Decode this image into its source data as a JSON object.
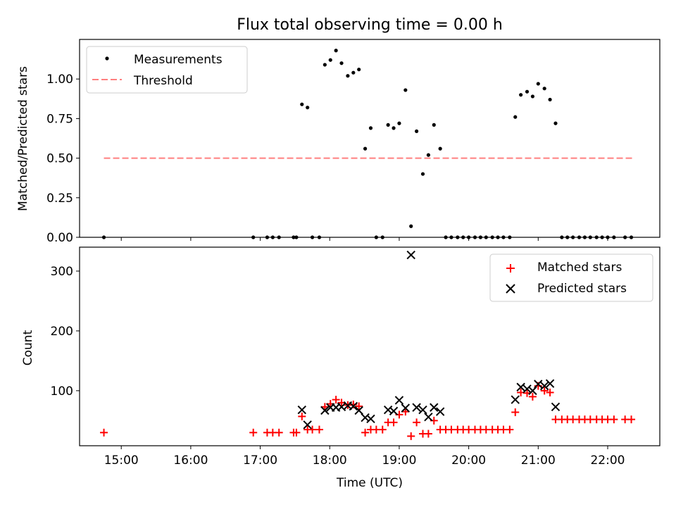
{
  "chart_data": [
    {
      "type": "scatter",
      "title": "Flux total observing time = 0.00 h",
      "xlabel": "",
      "ylabel": "Matched/Predicted stars",
      "xlim": [
        14.4,
        22.75
      ],
      "ylim": [
        0,
        1.25
      ],
      "yticks": [
        0.0,
        0.25,
        0.5,
        0.75,
        1.0
      ],
      "ytick_labels": [
        "0.00",
        "0.25",
        "0.50",
        "0.75",
        "1.00"
      ],
      "xticks": [
        15,
        16,
        17,
        18,
        19,
        20,
        21,
        22
      ],
      "legend_position": "top-left",
      "legend": [
        "Measurements",
        "Threshold"
      ],
      "threshold": {
        "name": "Threshold",
        "value": 0.5,
        "x_range": [
          14.75,
          22.35
        ],
        "color": "#ff7f7f"
      },
      "series": [
        {
          "name": "Measurements",
          "marker": "dot",
          "color": "#000000",
          "x": [
            14.75,
            16.9,
            17.1,
            17.18,
            17.27,
            17.48,
            17.52,
            17.75,
            17.85,
            17.93,
            18.01,
            18.09,
            18.17,
            18.26,
            18.34,
            18.42,
            18.51,
            18.59,
            18.67,
            18.76,
            18.84,
            18.92,
            19.0,
            19.09,
            19.17,
            19.25,
            19.34,
            19.42,
            19.5,
            19.59,
            19.67,
            19.75,
            19.84,
            19.92,
            20.0,
            20.09,
            20.17,
            20.25,
            20.34,
            20.42,
            20.5,
            20.59,
            20.67,
            20.75,
            20.84,
            20.92,
            21.0,
            21.09,
            21.17,
            21.25,
            21.34,
            21.42,
            21.5,
            21.59,
            21.67,
            21.75,
            21.84,
            21.92,
            22.0,
            22.09,
            22.25,
            22.34
          ],
          "y": [
            0.0,
            0.0,
            0.0,
            0.0,
            0.0,
            0.0,
            0.0,
            0.0,
            0.0,
            1.09,
            1.12,
            1.18,
            1.1,
            1.02,
            1.04,
            1.06,
            0.56,
            0.69,
            0.0,
            0.0,
            0.71,
            0.69,
            0.72,
            0.93,
            0.07,
            0.67,
            0.4,
            0.52,
            0.71,
            0.56,
            0.0,
            0.0,
            0.0,
            0.0,
            0.0,
            0.0,
            0.0,
            0.0,
            0.0,
            0.0,
            0.0,
            0.0,
            0.76,
            0.9,
            0.92,
            0.89,
            0.97,
            0.94,
            0.87,
            0.72,
            0.0,
            0.0,
            0.0,
            0.0,
            0.0,
            0.0,
            0.0,
            0.0,
            0.0,
            0.0,
            0.0,
            0.0
          ]
        },
        {
          "name": "Measurements",
          "marker": "dot",
          "color": "#000000",
          "x": [
            17.6,
            17.68
          ],
          "y": [
            0.84,
            0.82
          ]
        }
      ]
    },
    {
      "type": "scatter",
      "title": "",
      "xlabel": "Time (UTC)",
      "ylabel": "Count",
      "xlim": [
        14.4,
        22.75
      ],
      "ylim": [
        8,
        340
      ],
      "yticks": [
        100,
        200,
        300
      ],
      "ytick_labels": [
        "100",
        "200",
        "300"
      ],
      "xticks": [
        15,
        16,
        17,
        18,
        19,
        20,
        21,
        22
      ],
      "xtick_labels": [
        "15:00",
        "16:00",
        "17:00",
        "18:00",
        "19:00",
        "20:00",
        "21:00",
        "22:00"
      ],
      "legend_position": "top-right",
      "legend": [
        "Matched stars",
        "Predicted stars"
      ],
      "series": [
        {
          "name": "Matched stars",
          "marker": "plus",
          "color": "#ff0000",
          "x": [
            14.75,
            16.9,
            17.1,
            17.18,
            17.27,
            17.48,
            17.52,
            17.6,
            17.68,
            17.75,
            17.85,
            17.93,
            18.01,
            18.09,
            18.17,
            18.26,
            18.34,
            18.42,
            18.51,
            18.59,
            18.67,
            18.76,
            18.84,
            18.92,
            19.0,
            19.09,
            19.17,
            19.25,
            19.34,
            19.42,
            19.5,
            19.59,
            19.67,
            19.75,
            19.84,
            19.92,
            20.0,
            20.09,
            20.17,
            20.25,
            20.34,
            20.42,
            20.5,
            20.59,
            20.67,
            20.75,
            20.84,
            20.92,
            21.0,
            21.09,
            21.17,
            21.25,
            21.34,
            21.42,
            21.5,
            21.59,
            21.67,
            21.75,
            21.84,
            21.92,
            22.0,
            22.09,
            22.25,
            22.34
          ],
          "y": [
            30,
            30,
            30,
            30,
            30,
            30,
            30,
            57,
            35,
            35,
            35,
            73,
            78,
            85,
            80,
            76,
            77,
            74,
            30,
            35,
            35,
            35,
            47,
            47,
            60,
            65,
            24,
            47,
            28,
            28,
            50,
            35,
            35,
            35,
            35,
            35,
            35,
            35,
            35,
            35,
            35,
            35,
            35,
            35,
            64,
            97,
            96,
            90,
            108,
            100,
            97,
            52,
            52,
            52,
            52,
            52,
            52,
            52,
            52,
            52,
            52,
            52,
            52,
            52
          ]
        },
        {
          "name": "Predicted stars",
          "marker": "x",
          "color": "#000000",
          "x": [
            17.6,
            17.68,
            17.93,
            18.01,
            18.09,
            18.17,
            18.26,
            18.34,
            18.42,
            18.51,
            18.59,
            18.84,
            18.92,
            19.0,
            19.09,
            19.17,
            19.25,
            19.34,
            19.42,
            19.5,
            19.59,
            20.67,
            20.75,
            20.84,
            20.92,
            21.0,
            21.09,
            21.17,
            21.25
          ],
          "y": [
            68,
            43,
            67,
            72,
            72,
            73,
            75,
            74,
            67,
            55,
            53,
            68,
            66,
            84,
            71,
            327,
            72,
            68,
            56,
            72,
            65,
            85,
            106,
            103,
            100,
            111,
            108,
            112,
            73
          ]
        }
      ]
    }
  ]
}
